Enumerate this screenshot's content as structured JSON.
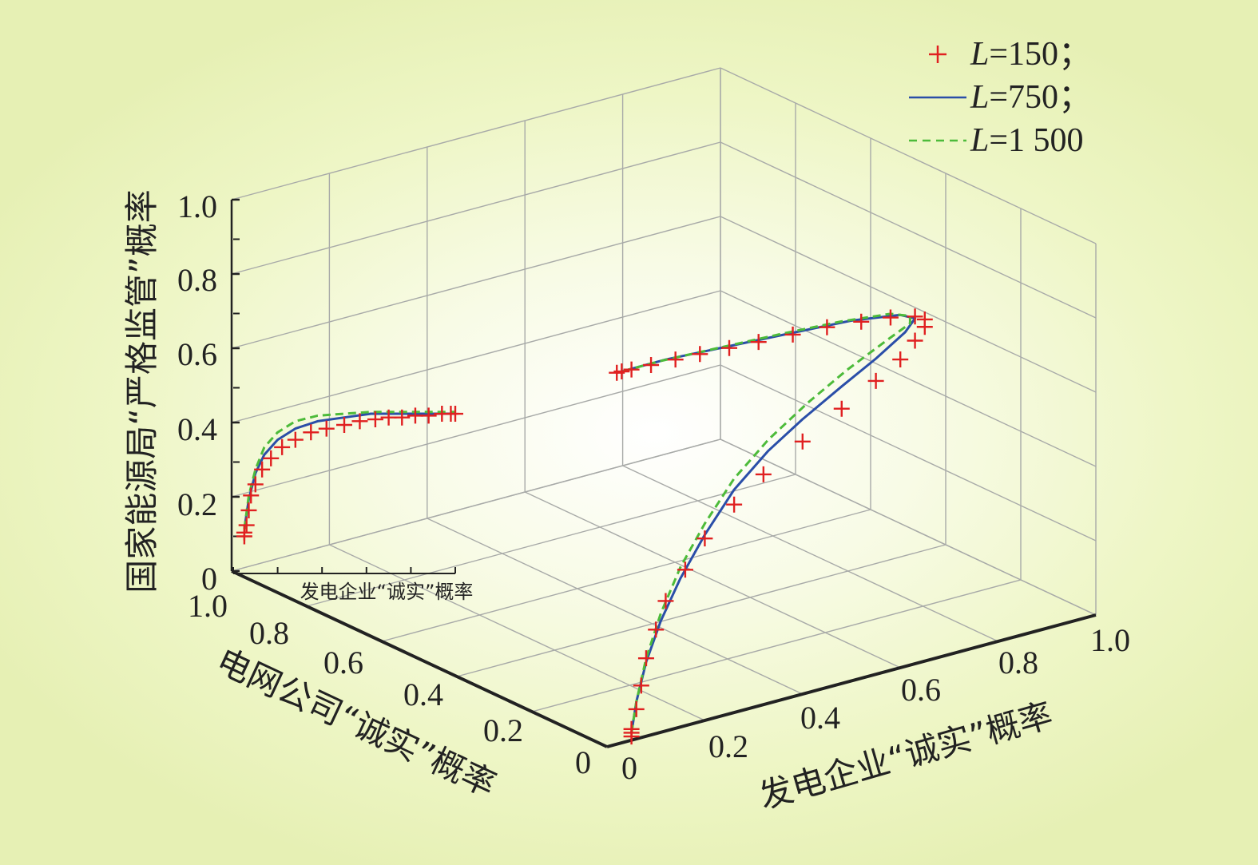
{
  "chart_data": {
    "type": "line",
    "projection": "3d",
    "x_axis": {
      "label": "发电企业“诚实”概率",
      "ticks": [
        "0",
        "0.2",
        "0.4",
        "0.6",
        "0.8",
        "1.0"
      ],
      "range": [
        0,
        1
      ]
    },
    "y_axis": {
      "label": "电网公司“诚实”概率",
      "ticks": [
        "0",
        "0.2",
        "0.4",
        "0.6",
        "0.8",
        "1.0"
      ],
      "range": [
        0,
        1
      ]
    },
    "z_axis": {
      "label": "国家能源局“严格监管”概率",
      "ticks": [
        "0",
        "0.2",
        "0.4",
        "0.6",
        "0.8",
        "1.0"
      ],
      "range": [
        0,
        1
      ]
    },
    "inset_axis_label": "发电企业“诚实”概率",
    "grid": true,
    "legend_position": "top-right",
    "legend": [
      {
        "prefix": "L",
        "text": "=150；",
        "style": "markers",
        "marker": "+",
        "color": "#e02020"
      },
      {
        "prefix": "L",
        "text": "=750；",
        "style": "solid",
        "color": "#2a4ea8"
      },
      {
        "prefix": "L",
        "text": "=1 500",
        "style": "dashed",
        "color": "#4dbb3a"
      }
    ],
    "main_trajectory": {
      "L750": [
        [
          0.05,
          0.0,
          0.02
        ],
        [
          0.06,
          0.0,
          0.1
        ],
        [
          0.08,
          0.0,
          0.2
        ],
        [
          0.11,
          0.0,
          0.3
        ],
        [
          0.15,
          0.0,
          0.4
        ],
        [
          0.2,
          0.0,
          0.5
        ],
        [
          0.26,
          0.0,
          0.6
        ],
        [
          0.33,
          0.0,
          0.68
        ],
        [
          0.4,
          0.0,
          0.74
        ],
        [
          0.48,
          0.0,
          0.8
        ],
        [
          0.55,
          0.0,
          0.85
        ],
        [
          0.61,
          0.0,
          0.9
        ],
        [
          0.63,
          0.0,
          0.93
        ],
        [
          0.6,
          0.0,
          0.95
        ],
        [
          0.5,
          0.0,
          0.97
        ],
        [
          0.38,
          0.0,
          0.98
        ],
        [
          0.25,
          0.0,
          0.99
        ],
        [
          0.12,
          0.0,
          1.0
        ],
        [
          0.02,
          0.0,
          1.0
        ]
      ],
      "L1500": [
        [
          0.05,
          0.0,
          0.02
        ],
        [
          0.06,
          0.0,
          0.1
        ],
        [
          0.08,
          0.0,
          0.21
        ],
        [
          0.11,
          0.0,
          0.32
        ],
        [
          0.15,
          0.0,
          0.43
        ],
        [
          0.2,
          0.0,
          0.53
        ],
        [
          0.26,
          0.0,
          0.63
        ],
        [
          0.33,
          0.0,
          0.71
        ],
        [
          0.41,
          0.0,
          0.78
        ],
        [
          0.49,
          0.0,
          0.84
        ],
        [
          0.57,
          0.0,
          0.89
        ],
        [
          0.62,
          0.0,
          0.92
        ],
        [
          0.62,
          0.0,
          0.94
        ],
        [
          0.58,
          0.0,
          0.96
        ],
        [
          0.48,
          0.0,
          0.975
        ],
        [
          0.36,
          0.0,
          0.985
        ],
        [
          0.23,
          0.0,
          0.993
        ],
        [
          0.11,
          0.0,
          1.0
        ],
        [
          0.02,
          0.0,
          1.0
        ]
      ],
      "L150": [
        [
          0.05,
          0.0,
          0.01
        ],
        [
          0.05,
          0.0,
          0.02
        ],
        [
          0.05,
          0.0,
          0.03
        ],
        [
          0.06,
          0.0,
          0.08
        ],
        [
          0.07,
          0.0,
          0.14
        ],
        [
          0.08,
          0.0,
          0.21
        ],
        [
          0.1,
          0.0,
          0.28
        ],
        [
          0.12,
          0.0,
          0.35
        ],
        [
          0.16,
          0.0,
          0.42
        ],
        [
          0.2,
          0.0,
          0.49
        ],
        [
          0.26,
          0.0,
          0.56
        ],
        [
          0.32,
          0.0,
          0.62
        ],
        [
          0.4,
          0.0,
          0.68
        ],
        [
          0.48,
          0.0,
          0.74
        ],
        [
          0.55,
          0.0,
          0.79
        ],
        [
          0.6,
          0.0,
          0.83
        ],
        [
          0.63,
          0.0,
          0.87
        ],
        [
          0.65,
          0.0,
          0.9
        ],
        [
          0.65,
          0.0,
          0.92
        ],
        [
          0.63,
          0.0,
          0.935
        ],
        [
          0.58,
          0.0,
          0.95
        ],
        [
          0.52,
          0.0,
          0.96
        ],
        [
          0.45,
          0.0,
          0.97
        ],
        [
          0.38,
          0.0,
          0.975
        ],
        [
          0.31,
          0.0,
          0.98
        ],
        [
          0.25,
          0.0,
          0.985
        ],
        [
          0.19,
          0.0,
          0.99
        ],
        [
          0.14,
          0.0,
          0.993
        ],
        [
          0.09,
          0.0,
          0.996
        ],
        [
          0.05,
          0.0,
          0.998
        ],
        [
          0.03,
          0.0,
          1.0
        ],
        [
          0.02,
          0.0,
          1.0
        ]
      ]
    },
    "inset_trajectory": {
      "L750": [
        [
          0.05,
          0.12
        ],
        [
          0.07,
          0.2
        ],
        [
          0.1,
          0.27
        ],
        [
          0.14,
          0.32
        ],
        [
          0.2,
          0.36
        ],
        [
          0.28,
          0.39
        ],
        [
          0.38,
          0.41
        ],
        [
          0.5,
          0.42
        ],
        [
          0.62,
          0.43
        ],
        [
          0.75,
          0.43
        ],
        [
          0.88,
          0.43
        ],
        [
          1.0,
          0.43
        ]
      ],
      "L1500": [
        [
          0.05,
          0.12
        ],
        [
          0.07,
          0.21
        ],
        [
          0.1,
          0.28
        ],
        [
          0.14,
          0.34
        ],
        [
          0.2,
          0.38
        ],
        [
          0.28,
          0.41
        ],
        [
          0.38,
          0.425
        ],
        [
          0.5,
          0.43
        ],
        [
          0.62,
          0.435
        ],
        [
          0.75,
          0.435
        ],
        [
          0.88,
          0.435
        ],
        [
          1.0,
          0.435
        ]
      ],
      "L150": [
        [
          0.05,
          0.1
        ],
        [
          0.05,
          0.11
        ],
        [
          0.06,
          0.13
        ],
        [
          0.07,
          0.17
        ],
        [
          0.08,
          0.21
        ],
        [
          0.1,
          0.24
        ],
        [
          0.13,
          0.28
        ],
        [
          0.17,
          0.31
        ],
        [
          0.22,
          0.34
        ],
        [
          0.28,
          0.36
        ],
        [
          0.35,
          0.38
        ],
        [
          0.42,
          0.39
        ],
        [
          0.5,
          0.4
        ],
        [
          0.57,
          0.41
        ],
        [
          0.64,
          0.415
        ],
        [
          0.7,
          0.42
        ],
        [
          0.76,
          0.42
        ],
        [
          0.82,
          0.425
        ],
        [
          0.88,
          0.425
        ],
        [
          0.94,
          0.43
        ],
        [
          0.98,
          0.43
        ],
        [
          1.0,
          0.43
        ]
      ]
    }
  }
}
